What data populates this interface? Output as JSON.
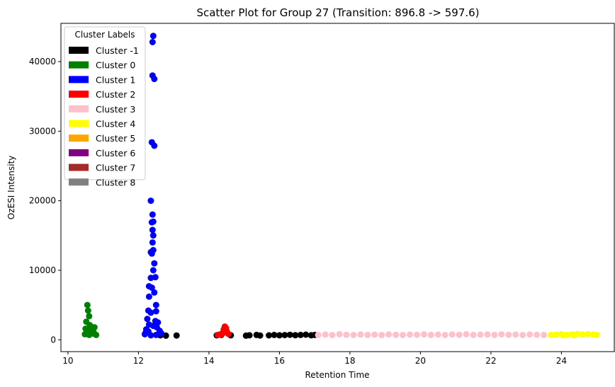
{
  "chart_data": {
    "type": "scatter",
    "title": "Scatter Plot for Group 27 (Transition: 896.8 -> 597.6)",
    "xlabel": "Retention Time",
    "ylabel": "OzESI Intensity",
    "xlim": [
      9.8,
      25.5
    ],
    "ylim": [
      -1700,
      45500
    ],
    "xticks": [
      10,
      12,
      14,
      16,
      18,
      20,
      22,
      24
    ],
    "yticks": [
      0,
      10000,
      20000,
      30000,
      40000
    ],
    "grid": false,
    "legend": {
      "title": "Cluster Labels",
      "placement": "top-left",
      "entries": [
        {
          "label": "Cluster -1",
          "color": "#000000"
        },
        {
          "label": "Cluster 0",
          "color": "#008000"
        },
        {
          "label": "Cluster 1",
          "color": "#0000ff"
        },
        {
          "label": "Cluster 2",
          "color": "#ff0000"
        },
        {
          "label": "Cluster 3",
          "color": "#ffc0cb"
        },
        {
          "label": "Cluster 4",
          "color": "#ffff00"
        },
        {
          "label": "Cluster 5",
          "color": "#ffa500"
        },
        {
          "label": "Cluster 6",
          "color": "#800080"
        },
        {
          "label": "Cluster 7",
          "color": "#a52a2a"
        },
        {
          "label": "Cluster 8",
          "color": "#808080"
        }
      ]
    },
    "series": [
      {
        "name": "Cluster -1",
        "color": "#000000",
        "points": [
          [
            12.62,
            650
          ],
          [
            12.78,
            600
          ],
          [
            13.08,
            620
          ],
          [
            14.22,
            640
          ],
          [
            14.35,
            700
          ],
          [
            14.62,
            650
          ],
          [
            15.05,
            600
          ],
          [
            15.15,
            650
          ],
          [
            15.35,
            700
          ],
          [
            15.45,
            620
          ],
          [
            15.7,
            640
          ],
          [
            15.85,
            700
          ],
          [
            16.0,
            650
          ],
          [
            16.15,
            680
          ],
          [
            16.3,
            720
          ],
          [
            16.45,
            660
          ],
          [
            16.6,
            700
          ],
          [
            16.75,
            740
          ],
          [
            16.9,
            650
          ],
          [
            17.0,
            700
          ]
        ]
      },
      {
        "name": "Cluster 0",
        "color": "#008000",
        "points": [
          [
            10.55,
            5000
          ],
          [
            10.57,
            4200
          ],
          [
            10.6,
            3400
          ],
          [
            10.52,
            2600
          ],
          [
            10.62,
            2100
          ],
          [
            10.5,
            1600
          ],
          [
            10.58,
            1300
          ],
          [
            10.65,
            1100
          ],
          [
            10.7,
            900
          ],
          [
            10.75,
            1800
          ],
          [
            10.48,
            800
          ],
          [
            10.8,
            700
          ],
          [
            10.6,
            700
          ],
          [
            10.55,
            1000
          ],
          [
            10.68,
            1500
          ],
          [
            10.72,
            1200
          ]
        ]
      },
      {
        "name": "Cluster 1",
        "color": "#0000ff",
        "points": [
          [
            12.42,
            43700
          ],
          [
            12.4,
            42800
          ],
          [
            12.4,
            38000
          ],
          [
            12.45,
            37500
          ],
          [
            12.38,
            28400
          ],
          [
            12.45,
            27900
          ],
          [
            12.35,
            20000
          ],
          [
            12.4,
            18000
          ],
          [
            12.42,
            17000
          ],
          [
            12.38,
            16900
          ],
          [
            12.4,
            15800
          ],
          [
            12.42,
            15000
          ],
          [
            12.4,
            14000
          ],
          [
            12.42,
            12900
          ],
          [
            12.35,
            12600
          ],
          [
            12.38,
            12400
          ],
          [
            12.45,
            11000
          ],
          [
            12.42,
            10000
          ],
          [
            12.48,
            9000
          ],
          [
            12.35,
            8900
          ],
          [
            12.3,
            7700
          ],
          [
            12.38,
            7500
          ],
          [
            12.45,
            6800
          ],
          [
            12.3,
            6200
          ],
          [
            12.5,
            5000
          ],
          [
            12.28,
            4200
          ],
          [
            12.35,
            3900
          ],
          [
            12.5,
            4100
          ],
          [
            12.25,
            3000
          ],
          [
            12.48,
            2700
          ],
          [
            12.55,
            2500
          ],
          [
            12.3,
            2200
          ],
          [
            12.42,
            2000
          ],
          [
            12.22,
            1500
          ],
          [
            12.6,
            1300
          ],
          [
            12.2,
            1000
          ],
          [
            12.65,
            900
          ],
          [
            12.18,
            800
          ],
          [
            12.5,
            700
          ],
          [
            12.35,
            650
          ],
          [
            12.28,
            1200
          ],
          [
            12.52,
            1800
          ]
        ]
      },
      {
        "name": "Cluster 2",
        "color": "#ff0000",
        "points": [
          [
            14.45,
            1900
          ],
          [
            14.48,
            1700
          ],
          [
            14.42,
            1500
          ],
          [
            14.5,
            1300
          ],
          [
            14.4,
            1100
          ],
          [
            14.52,
            1000
          ],
          [
            14.38,
            900
          ],
          [
            14.35,
            800
          ],
          [
            14.3,
            750
          ],
          [
            14.55,
            850
          ],
          [
            14.25,
            700
          ],
          [
            14.47,
            1200
          ]
        ]
      },
      {
        "name": "Cluster 3",
        "color": "#ffc0cb",
        "points": [
          [
            17.1,
            700
          ],
          [
            17.3,
            750
          ],
          [
            17.5,
            680
          ],
          [
            17.7,
            800
          ],
          [
            17.9,
            720
          ],
          [
            18.1,
            690
          ],
          [
            18.3,
            760
          ],
          [
            18.5,
            700
          ],
          [
            18.7,
            740
          ],
          [
            18.9,
            680
          ],
          [
            19.1,
            770
          ],
          [
            19.3,
            710
          ],
          [
            19.5,
            690
          ],
          [
            19.7,
            750
          ],
          [
            19.9,
            720
          ],
          [
            20.1,
            780
          ],
          [
            20.3,
            700
          ],
          [
            20.5,
            740
          ],
          [
            20.7,
            690
          ],
          [
            20.9,
            760
          ],
          [
            21.1,
            720
          ],
          [
            21.3,
            800
          ],
          [
            21.5,
            700
          ],
          [
            21.7,
            740
          ],
          [
            21.9,
            760
          ],
          [
            22.1,
            700
          ],
          [
            22.3,
            780
          ],
          [
            22.5,
            720
          ],
          [
            22.7,
            750
          ],
          [
            22.9,
            690
          ],
          [
            23.1,
            760
          ],
          [
            23.3,
            720
          ],
          [
            23.5,
            700
          ]
        ]
      },
      {
        "name": "Cluster 4",
        "color": "#ffff00",
        "points": [
          [
            23.7,
            700
          ],
          [
            23.85,
            750
          ],
          [
            24.0,
            800
          ],
          [
            24.15,
            720
          ],
          [
            24.3,
            780
          ],
          [
            24.45,
            850
          ],
          [
            24.6,
            760
          ],
          [
            24.75,
            820
          ],
          [
            24.9,
            740
          ],
          [
            25.0,
            700
          ],
          [
            24.35,
            650
          ],
          [
            24.05,
            660
          ]
        ]
      }
    ]
  }
}
